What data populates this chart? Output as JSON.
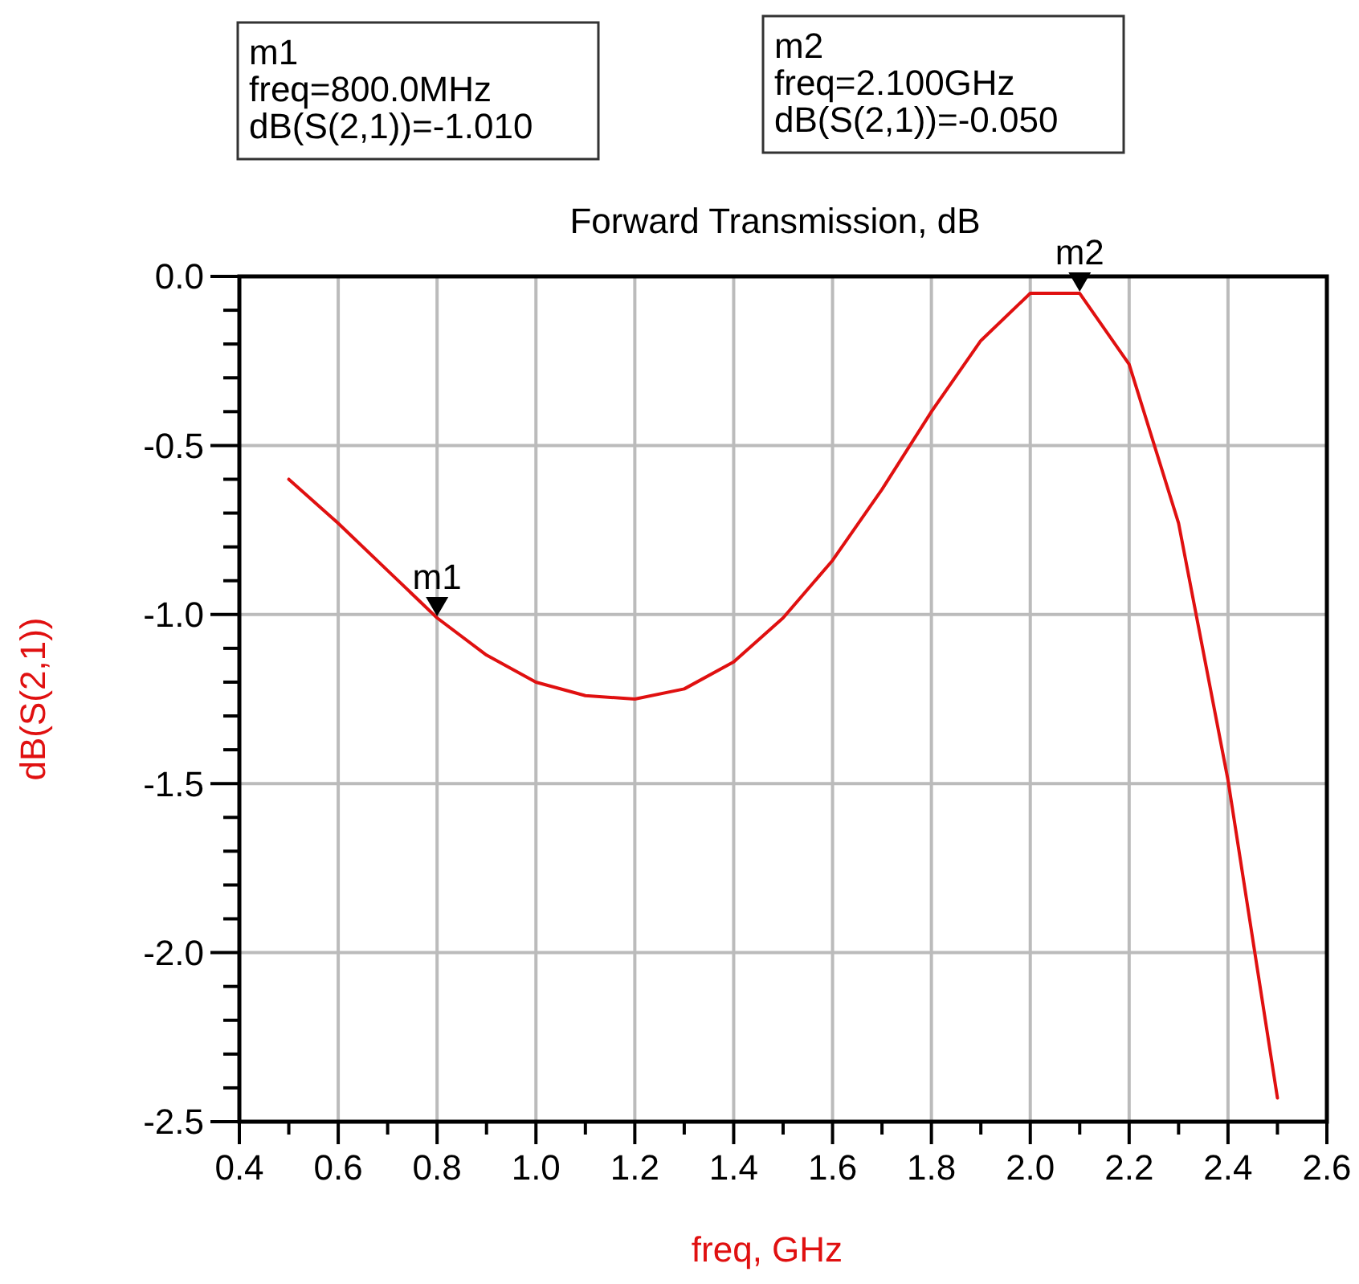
{
  "chart_data": {
    "type": "line",
    "title": "Forward Transmission, dB",
    "xlabel": "freq, GHz",
    "ylabel": "dB(S(2,1))",
    "x": [
      0.5,
      0.6,
      0.7,
      0.8,
      0.9,
      1.0,
      1.1,
      1.2,
      1.3,
      1.4,
      1.5,
      1.6,
      1.7,
      1.8,
      1.9,
      2.0,
      2.1,
      2.2,
      2.3,
      2.4,
      2.5
    ],
    "series": [
      {
        "color": "#e01010",
        "values": [
          -0.6,
          -0.73,
          -0.87,
          -1.01,
          -1.12,
          -1.2,
          -1.24,
          -1.25,
          -1.22,
          -1.14,
          -1.01,
          -0.84,
          -0.63,
          -0.4,
          -0.19,
          -0.05,
          -0.05,
          -0.26,
          -0.73,
          -1.49,
          -2.43
        ]
      }
    ],
    "xlim": [
      0.4,
      2.6
    ],
    "xticks": [
      0.4,
      {
        "value": 0.5,
        "label": null
      },
      0.6,
      {
        "value": 0.7,
        "label": null
      },
      0.8,
      {
        "value": 0.9,
        "label": null
      },
      {
        "value": 1.0,
        "label": "1.0"
      },
      {
        "value": 1.1,
        "label": null
      },
      1.2,
      {
        "value": 1.3,
        "label": null
      },
      1.4,
      {
        "value": 1.5,
        "label": null
      },
      1.6,
      {
        "value": 1.7,
        "label": null
      },
      1.8,
      {
        "value": 1.9,
        "label": null
      },
      {
        "value": 2.0,
        "label": "2.0"
      },
      {
        "value": 2.1,
        "label": null
      },
      2.2,
      {
        "value": 2.3,
        "label": null
      },
      2.4,
      {
        "value": 2.5,
        "label": null
      },
      2.6
    ],
    "ylim": [
      -2.5,
      0
    ],
    "yticks": [
      {
        "value": -2.5,
        "label": "-2.5"
      },
      {
        "value": -2.4,
        "label": null
      },
      {
        "value": -2.3,
        "label": null
      },
      {
        "value": -2.2,
        "label": null
      },
      {
        "value": -2.1,
        "label": null
      },
      {
        "value": -2.0,
        "label": "-2.0"
      },
      {
        "value": -1.9,
        "label": null
      },
      {
        "value": -1.8,
        "label": null
      },
      {
        "value": -1.7,
        "label": null
      },
      {
        "value": -1.6,
        "label": null
      },
      {
        "value": -1.5,
        "label": "-1.5"
      },
      {
        "value": -1.4,
        "label": null
      },
      {
        "value": -1.3,
        "label": null
      },
      {
        "value": -1.2,
        "label": null
      },
      {
        "value": -1.1,
        "label": null
      },
      {
        "value": -1.0,
        "label": "-1.0"
      },
      {
        "value": -0.9,
        "label": null
      },
      {
        "value": -0.8,
        "label": null
      },
      {
        "value": -0.7,
        "label": null
      },
      {
        "value": -0.6,
        "label": null
      },
      {
        "value": -0.5,
        "label": "-0.5"
      },
      {
        "value": -0.4,
        "label": null
      },
      {
        "value": -0.3,
        "label": null
      },
      {
        "value": -0.2,
        "label": null
      },
      {
        "value": -0.1,
        "label": null
      },
      {
        "value": 0,
        "label": "0.0"
      }
    ],
    "grid": true,
    "marker": "none",
    "line_style": "solid",
    "annotations": [
      "m1\nfreq=800.0MHz\ndB(S(2,1))=-1.010",
      "m2\nfreq=2.100GHz\ndB(S(2,1))=-0.050",
      {
        "text": "m1",
        "x": 0.8,
        "y": -1.01
      },
      {
        "text": "m2",
        "x": 2.1,
        "y": -0.05
      }
    ]
  }
}
